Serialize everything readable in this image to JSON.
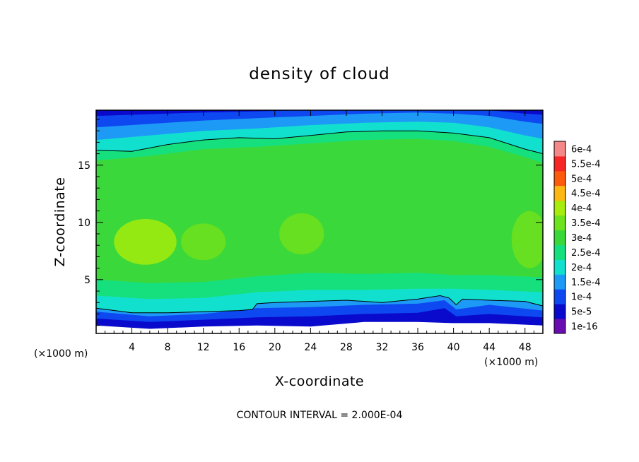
{
  "chart_data": {
    "type": "heatmap",
    "title": "density of cloud",
    "xlabel": "X-coordinate",
    "ylabel": "Z-coordinate",
    "x_unit": "(×1000 m)",
    "z_unit": "(×1000 m)",
    "xlim": [
      0,
      50
    ],
    "ylim": [
      0.3,
      19.8
    ],
    "x_ticks": [
      4,
      8,
      12,
      16,
      20,
      24,
      28,
      32,
      36,
      40,
      44,
      48
    ],
    "y_ticks": [
      5,
      10,
      15
    ],
    "footer": "CONTOUR INTERVAL = 2.000E-04",
    "colorbar": {
      "levels": [
        "1e-16",
        "5e-5",
        "1e-4",
        "1.5e-4",
        "2e-4",
        "2.5e-4",
        "3e-4",
        "3.5e-4",
        "4e-4",
        "4.5e-4",
        "5e-4",
        "5.5e-4",
        "6e-4"
      ],
      "colors": [
        "#6a0db0",
        "#0a0acc",
        "#0e48f0",
        "#1c9af6",
        "#12e0cf",
        "#16e07e",
        "#3ad83a",
        "#6ee21c",
        "#a6ec0c",
        "#fcb812",
        "#fc5a0c",
        "#f62626",
        "#f48888"
      ]
    },
    "contour_lines": [
      {
        "level": "2e-4",
        "points": [
          [
            0,
            16.3
          ],
          [
            4,
            16.2
          ],
          [
            8,
            16.8
          ],
          [
            12,
            17.2
          ],
          [
            16,
            17.4
          ],
          [
            20,
            17.3
          ],
          [
            24,
            17.6
          ],
          [
            28,
            17.9
          ],
          [
            32,
            18.0
          ],
          [
            36,
            18.0
          ],
          [
            40,
            17.8
          ],
          [
            44,
            17.4
          ],
          [
            48,
            16.4
          ],
          [
            50,
            16.0
          ]
        ]
      },
      {
        "level": "2e-4",
        "points": [
          [
            0,
            2.5
          ],
          [
            4,
            2.1
          ],
          [
            8,
            2.1
          ],
          [
            12,
            2.2
          ],
          [
            16,
            2.3
          ],
          [
            17.5,
            2.4
          ],
          [
            18,
            2.9
          ],
          [
            20,
            3.0
          ],
          [
            24,
            3.1
          ],
          [
            28,
            3.2
          ],
          [
            32,
            3.0
          ],
          [
            36,
            3.3
          ],
          [
            38.5,
            3.6
          ],
          [
            39.5,
            3.4
          ],
          [
            40.3,
            2.8
          ],
          [
            41,
            3.3
          ],
          [
            44,
            3.2
          ],
          [
            48,
            3.1
          ],
          [
            50,
            2.7
          ]
        ]
      }
    ],
    "regions": [
      {
        "level": 1,
        "points": [
          [
            0,
            1.0
          ],
          [
            6,
            0.7
          ],
          [
            12,
            0.9
          ],
          [
            18,
            1.0
          ],
          [
            24,
            0.9
          ],
          [
            30,
            1.3
          ],
          [
            36,
            1.3
          ],
          [
            40,
            1.2
          ],
          [
            44,
            1.2
          ],
          [
            50,
            1.0
          ]
        ]
      },
      {
        "level": 2,
        "points": [
          [
            0,
            1.6
          ],
          [
            6,
            1.3
          ],
          [
            12,
            1.5
          ],
          [
            18,
            1.7
          ],
          [
            24,
            1.8
          ],
          [
            30,
            2.0
          ],
          [
            36,
            2.1
          ],
          [
            39,
            2.5
          ],
          [
            40.3,
            1.8
          ],
          [
            44,
            2.0
          ],
          [
            50,
            1.7
          ]
        ]
      },
      {
        "level": 3,
        "points": [
          [
            0,
            2.2
          ],
          [
            6,
            1.8
          ],
          [
            12,
            2.0
          ],
          [
            18,
            2.5
          ],
          [
            24,
            2.6
          ],
          [
            30,
            2.8
          ],
          [
            36,
            2.9
          ],
          [
            39,
            3.2
          ],
          [
            40.3,
            2.4
          ],
          [
            44,
            2.8
          ],
          [
            50,
            2.3
          ]
        ]
      },
      {
        "level": 4,
        "points": [
          [
            0,
            2.5
          ],
          [
            4,
            2.1
          ],
          [
            8,
            2.1
          ],
          [
            12,
            2.2
          ],
          [
            16,
            2.3
          ],
          [
            17.5,
            2.4
          ],
          [
            18,
            2.9
          ],
          [
            20,
            3.0
          ],
          [
            24,
            3.1
          ],
          [
            28,
            3.2
          ],
          [
            32,
            3.0
          ],
          [
            36,
            3.3
          ],
          [
            38.5,
            3.6
          ],
          [
            39.5,
            3.4
          ],
          [
            40.3,
            2.8
          ],
          [
            41,
            3.3
          ],
          [
            44,
            3.2
          ],
          [
            48,
            3.1
          ],
          [
            50,
            2.7
          ]
        ]
      },
      {
        "level": 5,
        "points": [
          [
            0,
            3.6
          ],
          [
            6,
            3.3
          ],
          [
            12,
            3.4
          ],
          [
            18,
            3.9
          ],
          [
            24,
            4.1
          ],
          [
            30,
            4.1
          ],
          [
            36,
            4.2
          ],
          [
            40,
            4.2
          ],
          [
            44,
            4.1
          ],
          [
            50,
            3.9
          ]
        ]
      },
      {
        "level": 6,
        "points": [
          [
            0,
            5.0
          ],
          [
            6,
            4.7
          ],
          [
            12,
            4.8
          ],
          [
            18,
            5.3
          ],
          [
            24,
            5.6
          ],
          [
            30,
            5.5
          ],
          [
            36,
            5.6
          ],
          [
            40,
            5.4
          ],
          [
            44,
            5.4
          ],
          [
            50,
            5.2
          ]
        ]
      },
      {
        "level": 5,
        "points": [
          [
            0,
            15.4
          ],
          [
            6,
            15.8
          ],
          [
            12,
            16.4
          ],
          [
            18,
            16.6
          ],
          [
            24,
            16.9
          ],
          [
            30,
            17.2
          ],
          [
            36,
            17.3
          ],
          [
            40,
            17.1
          ],
          [
            44,
            16.6
          ],
          [
            48,
            15.7
          ],
          [
            50,
            15.2
          ]
        ]
      },
      {
        "level": 4,
        "points": [
          [
            0,
            16.3
          ],
          [
            4,
            16.2
          ],
          [
            8,
            16.8
          ],
          [
            12,
            17.2
          ],
          [
            16,
            17.4
          ],
          [
            20,
            17.3
          ],
          [
            24,
            17.6
          ],
          [
            28,
            17.9
          ],
          [
            32,
            18.0
          ],
          [
            36,
            18.0
          ],
          [
            40,
            17.8
          ],
          [
            44,
            17.4
          ],
          [
            48,
            16.4
          ],
          [
            50,
            16.0
          ]
        ]
      },
      {
        "level": 3,
        "points": [
          [
            0,
            17.2
          ],
          [
            6,
            17.6
          ],
          [
            12,
            18.0
          ],
          [
            18,
            18.2
          ],
          [
            24,
            18.5
          ],
          [
            30,
            18.7
          ],
          [
            36,
            18.8
          ],
          [
            40,
            18.7
          ],
          [
            44,
            18.3
          ],
          [
            48,
            17.6
          ],
          [
            50,
            17.3
          ]
        ]
      },
      {
        "level": 2,
        "points": [
          [
            0,
            18.3
          ],
          [
            6,
            18.6
          ],
          [
            12,
            18.9
          ],
          [
            18,
            19.1
          ],
          [
            24,
            19.3
          ],
          [
            30,
            19.5
          ],
          [
            36,
            19.6
          ],
          [
            40,
            19.5
          ],
          [
            44,
            19.3
          ],
          [
            48,
            18.8
          ],
          [
            50,
            18.6
          ]
        ]
      },
      {
        "level": 1,
        "points": [
          [
            0,
            19.3
          ],
          [
            12,
            19.6
          ],
          [
            24,
            19.8
          ],
          [
            36,
            19.8
          ],
          [
            44,
            19.8
          ],
          [
            48,
            19.5
          ],
          [
            50,
            19.4
          ]
        ]
      }
    ],
    "blobs": [
      {
        "level": 8,
        "cx": 5.5,
        "cy": 8.3,
        "rx": 3.5,
        "ry": 2.0
      },
      {
        "level": 7,
        "cx": 12,
        "cy": 8.3,
        "rx": 2.5,
        "ry": 1.6
      },
      {
        "level": 7,
        "cx": 23,
        "cy": 9.0,
        "rx": 2.5,
        "ry": 1.8
      },
      {
        "level": 7,
        "cx": 48.5,
        "cy": 8.5,
        "rx": 2.0,
        "ry": 2.5
      }
    ]
  }
}
